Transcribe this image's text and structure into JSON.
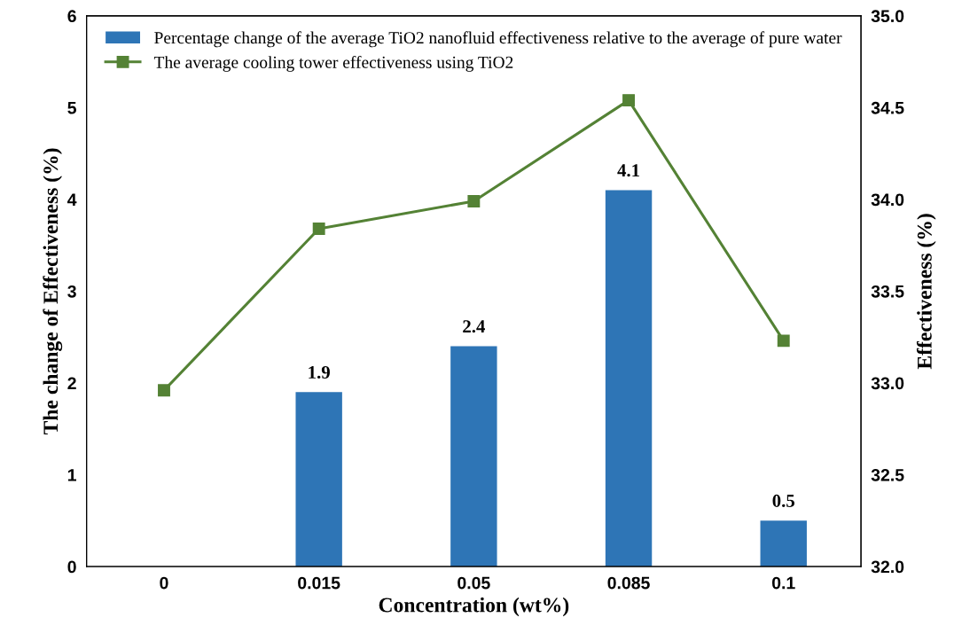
{
  "chart_data": {
    "type": "bar",
    "xlabel": "Concentration (wt%)",
    "ylabel": "The change of Effectiveness (%)",
    "y2label": "Effectiveness (%)",
    "categories": [
      "0",
      "0.015",
      "0.05",
      "0.085",
      "0.1"
    ],
    "series": [
      {
        "name": "Percentage change of the average TiO2 nanofluid effectiveness relative to the average of pure water",
        "color": "#2e75b6",
        "values": [
          0,
          1.9,
          2.4,
          4.1,
          0.5
        ],
        "value_labels": [
          null,
          "1.9",
          "2.4",
          "4.1",
          "0.5"
        ]
      },
      {
        "name": "The average cooling tower effectiveness using TiO2",
        "type": "line",
        "axis": "y2",
        "color": "#548235",
        "marker": "square",
        "line_style": "solid",
        "values": [
          32.96,
          33.84,
          33.99,
          34.54,
          33.23
        ]
      }
    ],
    "ylim": [
      0,
      6
    ],
    "yticks": [
      0,
      1,
      2,
      3,
      4,
      5,
      6
    ],
    "y2lim": [
      32.0,
      35.0
    ],
    "y2ticks": [
      {
        "value": 32.0,
        "label": "32.0"
      },
      {
        "value": 32.5,
        "label": "32.5"
      },
      {
        "value": 33.0,
        "label": "33.0"
      },
      {
        "value": 33.5,
        "label": "33.5"
      },
      {
        "value": 34.0,
        "label": "34.0"
      },
      {
        "value": 34.5,
        "label": "34.5"
      },
      {
        "value": 35.0,
        "label": "35.0"
      }
    ],
    "grid": false,
    "legend": "top"
  }
}
